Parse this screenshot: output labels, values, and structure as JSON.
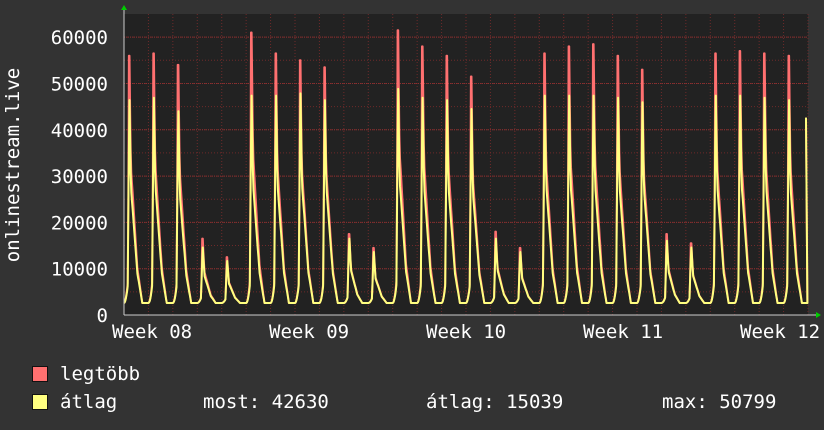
{
  "chart_data": {
    "type": "area",
    "ylabel": "onlinestream.live",
    "ylim": [
      0,
      65000
    ],
    "y_ticks": [
      0,
      10000,
      20000,
      30000,
      40000,
      50000,
      60000
    ],
    "x_ticks": [
      "Week 08",
      "Week 09",
      "Week 10",
      "Week 11",
      "Week 12"
    ],
    "grid": true,
    "colors": {
      "background": "#333333",
      "plot": "#222222",
      "grid": "#6e2a2a",
      "axis": "#cccccc",
      "arrow": "#00cc00"
    },
    "series": [
      {
        "name": "legtöbb",
        "color": "#ff7070",
        "daily_peaks": [
          56000,
          56500,
          54000,
          16500,
          12500,
          61000,
          56500,
          55000,
          53500,
          17500,
          14500,
          61500,
          58000,
          56000,
          51500,
          18000,
          14500,
          56500,
          58000,
          58500,
          56000,
          53000,
          17500,
          15500,
          56500,
          57000,
          56500,
          56000
        ]
      },
      {
        "name": "átlag",
        "color": "#ffff80",
        "daily_peaks": [
          48000,
          48500,
          45500,
          15000,
          12000,
          49000,
          49000,
          49500,
          48000,
          17000,
          14000,
          50500,
          48500,
          48000,
          46000,
          17000,
          14000,
          49000,
          49000,
          49000,
          48500,
          47500,
          16500,
          15000,
          49000,
          49000,
          48500,
          48000
        ]
      }
    ],
    "last_value": 42630
  },
  "legend": {
    "max_label": "legtöbb",
    "avg_label": "átlag",
    "max_color": "#ff7070",
    "avg_color": "#ffff80"
  },
  "stats": {
    "now": "most: 42630",
    "avg": "átlag: 15039",
    "max": "max: 50799"
  }
}
